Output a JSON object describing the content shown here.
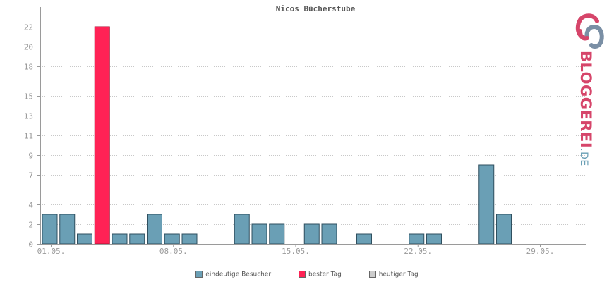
{
  "chart_data": {
    "type": "bar",
    "title": "Nicos Bücherstube",
    "ylim": [
      0,
      23
    ],
    "yticks": [
      "0",
      "2",
      "4",
      "7",
      "9",
      "11",
      "13",
      "15",
      "18",
      "20",
      "22"
    ],
    "xticks": [
      {
        "day": 1,
        "label": "01.05."
      },
      {
        "day": 8,
        "label": "08.05."
      },
      {
        "day": 15,
        "label": "15.05."
      },
      {
        "day": 22,
        "label": "22.05."
      },
      {
        "day": 29,
        "label": "29.05."
      }
    ],
    "days": [
      1,
      2,
      3,
      4,
      5,
      6,
      7,
      8,
      9,
      10,
      11,
      12,
      13,
      14,
      15,
      16,
      17,
      18,
      19,
      20,
      21,
      22,
      23,
      24,
      25,
      26,
      27,
      28,
      29,
      30,
      31
    ],
    "values": [
      3,
      3,
      1,
      22,
      1,
      1,
      3,
      1,
      1,
      0,
      0,
      3,
      2,
      2,
      0,
      2,
      2,
      0,
      1,
      0,
      0,
      1,
      1,
      0,
      0,
      8,
      3,
      0,
      0,
      0,
      0
    ],
    "best_day_index": 3,
    "series": [
      {
        "name": "eindeutige Besucher",
        "color": "#6a9fb5"
      },
      {
        "name": "bester Tag",
        "color": "#ff2255"
      },
      {
        "name": "heutiger Tag",
        "color": "#cccccc"
      }
    ],
    "grid": true
  },
  "logo": {
    "text_main": "BLOGGEREI",
    "text_suffix": ".DE",
    "color_main": "#d6456a",
    "color_suffix": "#6a9fb5"
  }
}
